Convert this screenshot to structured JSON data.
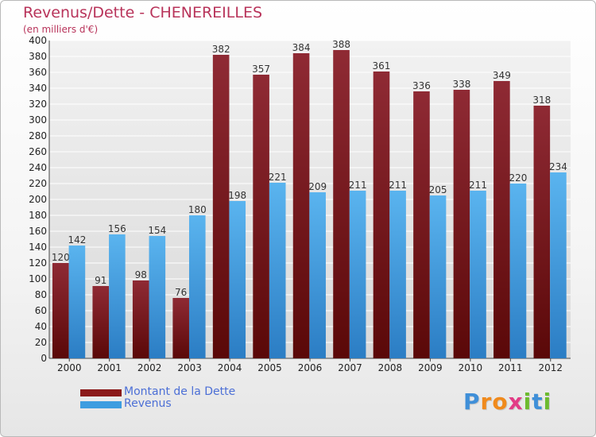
{
  "chart_data": {
    "type": "bar",
    "title": "Revenus/Dette - CHENEREILLES",
    "subtitle": "(en milliers d'€)",
    "categories": [
      "2000",
      "2001",
      "2002",
      "2003",
      "2004",
      "2005",
      "2006",
      "2007",
      "2008",
      "2009",
      "2010",
      "2011",
      "2012"
    ],
    "series": [
      {
        "name": "Montant de la Dette",
        "color": "#8b1a1a",
        "values": [
          120,
          91,
          98,
          76,
          382,
          357,
          384,
          388,
          361,
          336,
          338,
          349,
          318
        ]
      },
      {
        "name": "Revenus",
        "color": "#3d9de0",
        "values": [
          142,
          156,
          154,
          180,
          198,
          221,
          209,
          211,
          211,
          205,
          211,
          220,
          234
        ]
      }
    ],
    "ylim": [
      0,
      400
    ],
    "ytick_step": 20,
    "grid": true,
    "legend_position": "bottom-left"
  },
  "brand": {
    "logo_letters": [
      {
        "ch": "P",
        "color": "#3f8fd8"
      },
      {
        "ch": "r",
        "color": "#f08a1c"
      },
      {
        "ch": "o",
        "color": "#f08a1c"
      },
      {
        "ch": "x",
        "color": "#e23c86"
      },
      {
        "ch": "i",
        "color": "#6dbb2f"
      },
      {
        "ch": "t",
        "color": "#3f8fd8"
      },
      {
        "ch": "i",
        "color": "#6dbb2f"
      }
    ]
  }
}
